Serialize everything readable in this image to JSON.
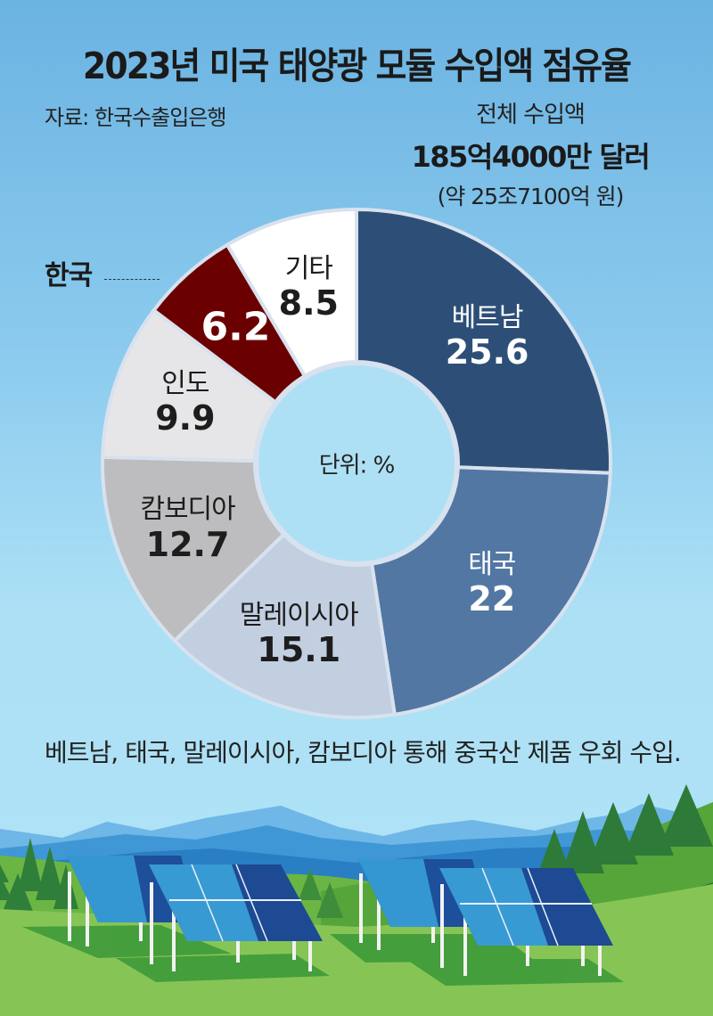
{
  "header": {
    "title": "2023년 미국 태양광 모듈 수입액 점유율",
    "source": "자료: 한국수출입은행"
  },
  "total": {
    "label": "전체 수입액",
    "amount": "185억4000만 달러",
    "krw": "(약 25조7100억 원)"
  },
  "callout": {
    "korea_label": "한국"
  },
  "note": "베트남, 태국, 말레이시아, 캄보디아 통해 중국산 제품 우회 수입.",
  "chart_data": {
    "type": "pie",
    "subtype": "donut",
    "title": "2023년 미국 태양광 모듈 수입액 점유율",
    "unit_label": "단위: %",
    "unit": "%",
    "total_label": "전체 수입액 185억4000만 달러 (약 25조7100억 원)",
    "source": "자료: 한국수출입은행",
    "start_angle_deg": 0,
    "direction": "clockwise",
    "categories": [
      "베트남",
      "태국",
      "말레이시아",
      "캄보디아",
      "인도",
      "한국",
      "기타"
    ],
    "values": [
      25.6,
      22,
      15.1,
      12.7,
      9.9,
      6.2,
      8.5
    ],
    "value_labels": [
      "25.6",
      "22",
      "15.1",
      "12.7",
      "9.9",
      "6.2",
      "8.5"
    ],
    "colors": [
      "#2d4f77",
      "#5277a3",
      "#c2cfe0",
      "#bdbdbf",
      "#e6e6e8",
      "#6b0000",
      "#ffffff"
    ],
    "label_colors": [
      "#ffffff",
      "#ffffff",
      "#1d1d1d",
      "#1d1d1d",
      "#1d1d1d",
      "#ffffff",
      "#1d1d1d"
    ],
    "show_name_in_slice": [
      true,
      true,
      true,
      true,
      true,
      false,
      true
    ],
    "highlight": "한국"
  }
}
